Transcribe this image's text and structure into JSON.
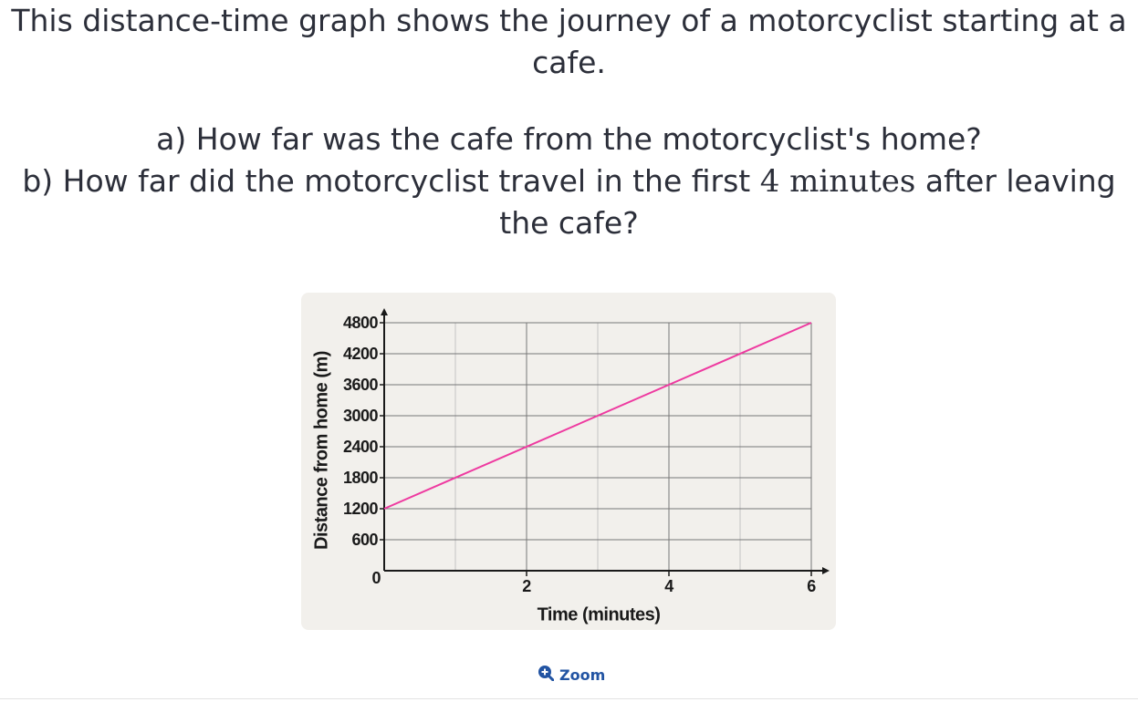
{
  "question": {
    "intro": "This distance-time graph shows the journey of a motorcyclist starting at a cafe.",
    "part_a": "a) How far was the cafe from the motorcyclist's home?",
    "part_b_before": "b) How far did the motorcyclist travel in the first ",
    "part_b_math": "4 minutes",
    "part_b_after": " after leaving the cafe?"
  },
  "zoom": {
    "label": "Zoom"
  },
  "colors": {
    "line": "#ee3aa0",
    "accent": "#2254a3",
    "card": "#f2f0ec"
  },
  "chart_data": {
    "type": "line",
    "xlabel": "Time (minutes)",
    "ylabel": "Distance from home (m)",
    "xlim": [
      0,
      6
    ],
    "ylim": [
      0,
      4800
    ],
    "x_ticks": [
      0,
      2,
      4,
      6
    ],
    "x_tick_labels": [
      "0",
      "2",
      "4",
      "6"
    ],
    "y_ticks": [
      0,
      600,
      1200,
      1800,
      2400,
      3000,
      3600,
      4200,
      4800
    ],
    "y_tick_labels": [
      "0",
      "600",
      "1200",
      "1800",
      "2400",
      "3000",
      "3600",
      "4200",
      "4800"
    ],
    "x_grid_step": 1,
    "grid": true,
    "series": [
      {
        "x": [
          0,
          6
        ],
        "y": [
          1200,
          4800
        ],
        "color": "#ee3aa0"
      }
    ]
  }
}
